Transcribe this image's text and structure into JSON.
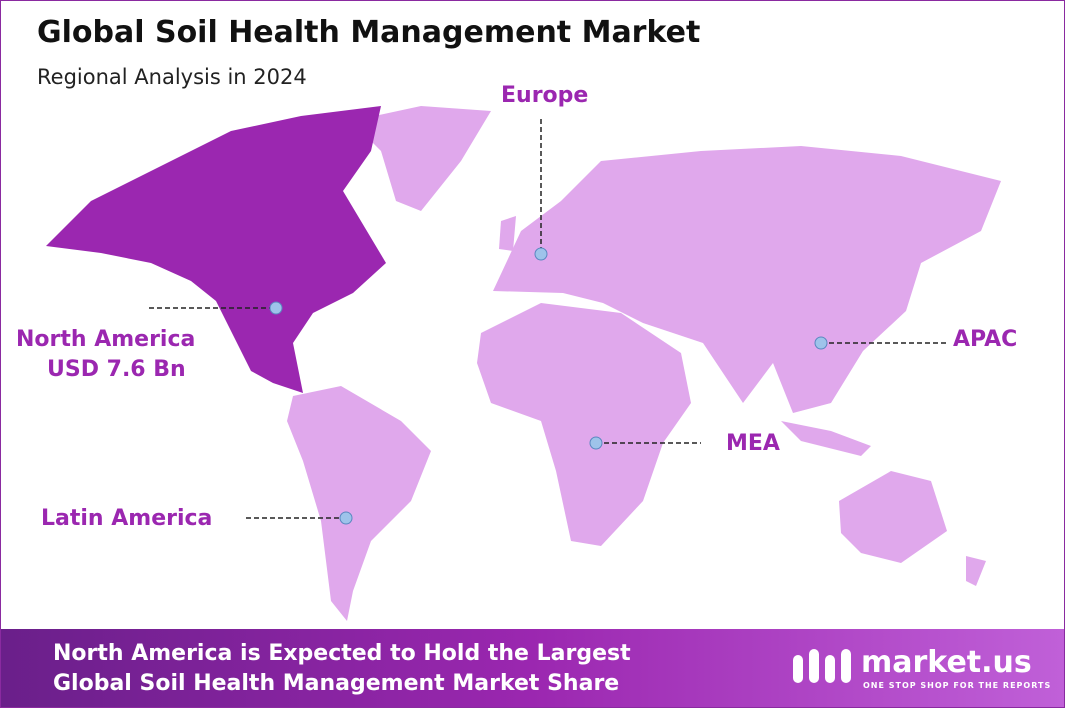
{
  "header": {
    "title": "Global Soil Health Management  Market",
    "subtitle": "Regional Analysis in 2024"
  },
  "regions": [
    {
      "label": "North America",
      "value_label": "USD 7.6 Bn"
    },
    {
      "label": "Europe"
    },
    {
      "label": "APAC"
    },
    {
      "label": "MEA"
    },
    {
      "label": "Latin America"
    }
  ],
  "footer": {
    "lines": [
      "North America is Expected to Hold the Largest",
      "Global Soil Health Management Market Share"
    ],
    "brand": "market.us",
    "tagline": "ONE STOP SHOP FOR THE REPORTS"
  }
}
